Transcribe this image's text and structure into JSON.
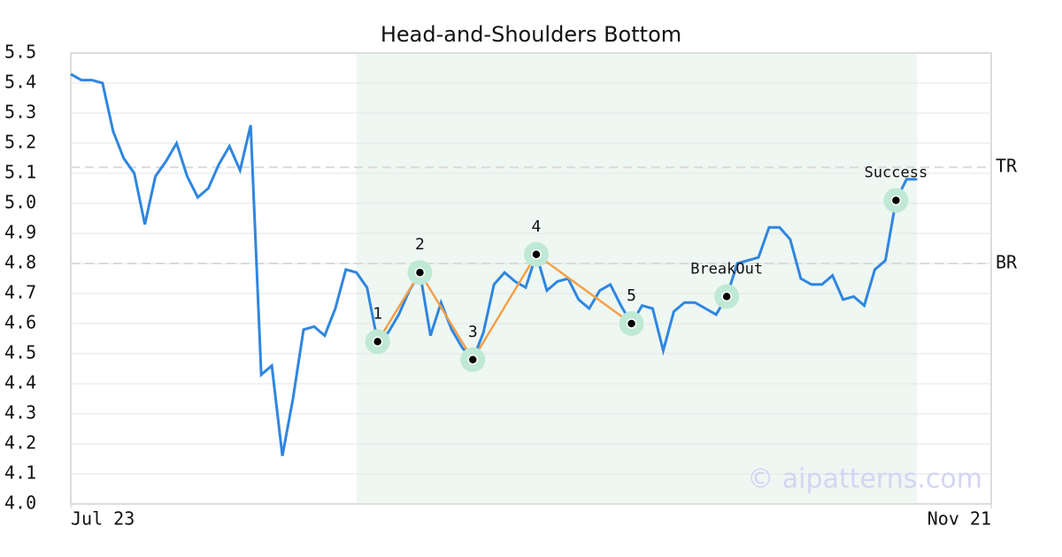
{
  "chart_data": {
    "type": "line",
    "title": "Head-and-Shoulders Bottom",
    "x": [
      0,
      1,
      2,
      3,
      4,
      5,
      6,
      7,
      8,
      9,
      10,
      11,
      12,
      13,
      14,
      15,
      16,
      17,
      18,
      19,
      20,
      21,
      22,
      23,
      24,
      25,
      26,
      27,
      28,
      29,
      30,
      31,
      32,
      33,
      34,
      35,
      36,
      37,
      38,
      39,
      40,
      41,
      42,
      43,
      44,
      45,
      46,
      47,
      48,
      49,
      50,
      51,
      52,
      53,
      54,
      55,
      56,
      57,
      58,
      59,
      60,
      61,
      62,
      63,
      64,
      65,
      66,
      67,
      68,
      69,
      70,
      71,
      72,
      73,
      74,
      75,
      76,
      77,
      78,
      79,
      80
    ],
    "series": [
      {
        "color": "#2f86e0",
        "values": [
          5.43,
          5.41,
          5.41,
          5.4,
          5.24,
          5.15,
          5.1,
          4.93,
          5.09,
          5.14,
          5.2,
          5.09,
          5.02,
          5.05,
          5.13,
          5.19,
          5.11,
          5.26,
          4.43,
          4.46,
          4.16,
          4.35,
          4.58,
          4.59,
          4.56,
          4.65,
          4.78,
          4.77,
          4.72,
          4.54,
          4.57,
          4.63,
          4.71,
          4.77,
          4.56,
          4.67,
          4.58,
          4.52,
          4.48,
          4.57,
          4.73,
          4.77,
          4.74,
          4.72,
          4.83,
          4.71,
          4.74,
          4.75,
          4.68,
          4.65,
          4.71,
          4.73,
          4.66,
          4.6,
          4.66,
          4.65,
          4.51,
          4.64,
          4.67,
          4.67,
          4.65,
          4.63,
          4.69,
          4.8,
          4.81,
          4.82,
          4.92,
          4.92,
          4.88,
          4.75,
          4.73,
          4.73,
          4.76,
          4.68,
          4.69,
          4.66,
          4.78,
          4.81,
          5.01,
          5.08,
          5.08
        ]
      }
    ],
    "highlight": {
      "x": [
        27,
        80
      ],
      "color": "#eef7f2"
    },
    "pattern": {
      "color": "#f5a04a",
      "points": [
        {
          "label": "1",
          "x": 29,
          "y": 4.54
        },
        {
          "label": "2",
          "x": 33,
          "y": 4.77
        },
        {
          "label": "3",
          "x": 38,
          "y": 4.48
        },
        {
          "label": "4",
          "x": 44,
          "y": 4.83
        },
        {
          "label": "5",
          "x": 53,
          "y": 4.6
        }
      ]
    },
    "events": [
      {
        "label": "BreakOut",
        "x": 62,
        "y": 4.69
      },
      {
        "label": "Success",
        "x": 78,
        "y": 5.01
      }
    ],
    "levels": [
      {
        "label": "TR",
        "value": 5.12
      },
      {
        "label": "BR",
        "value": 4.8
      }
    ],
    "xlim": [
      0,
      87
    ],
    "xticks": [
      {
        "value": 0,
        "label": "Jul 23"
      },
      {
        "value": 87,
        "label": "Nov 21"
      }
    ],
    "ylim": [
      4.0,
      5.5
    ],
    "yticks": [
      {
        "value": 4.0,
        "label": "4.0"
      },
      4.1,
      4.2,
      4.3,
      4.4,
      4.5,
      4.6,
      4.7,
      4.8,
      4.9,
      {
        "value": 5.0,
        "label": "5.0"
      },
      5.1,
      5.2,
      5.3,
      5.4,
      5.5
    ],
    "grid": true,
    "watermark": "© aipatterns.com"
  }
}
